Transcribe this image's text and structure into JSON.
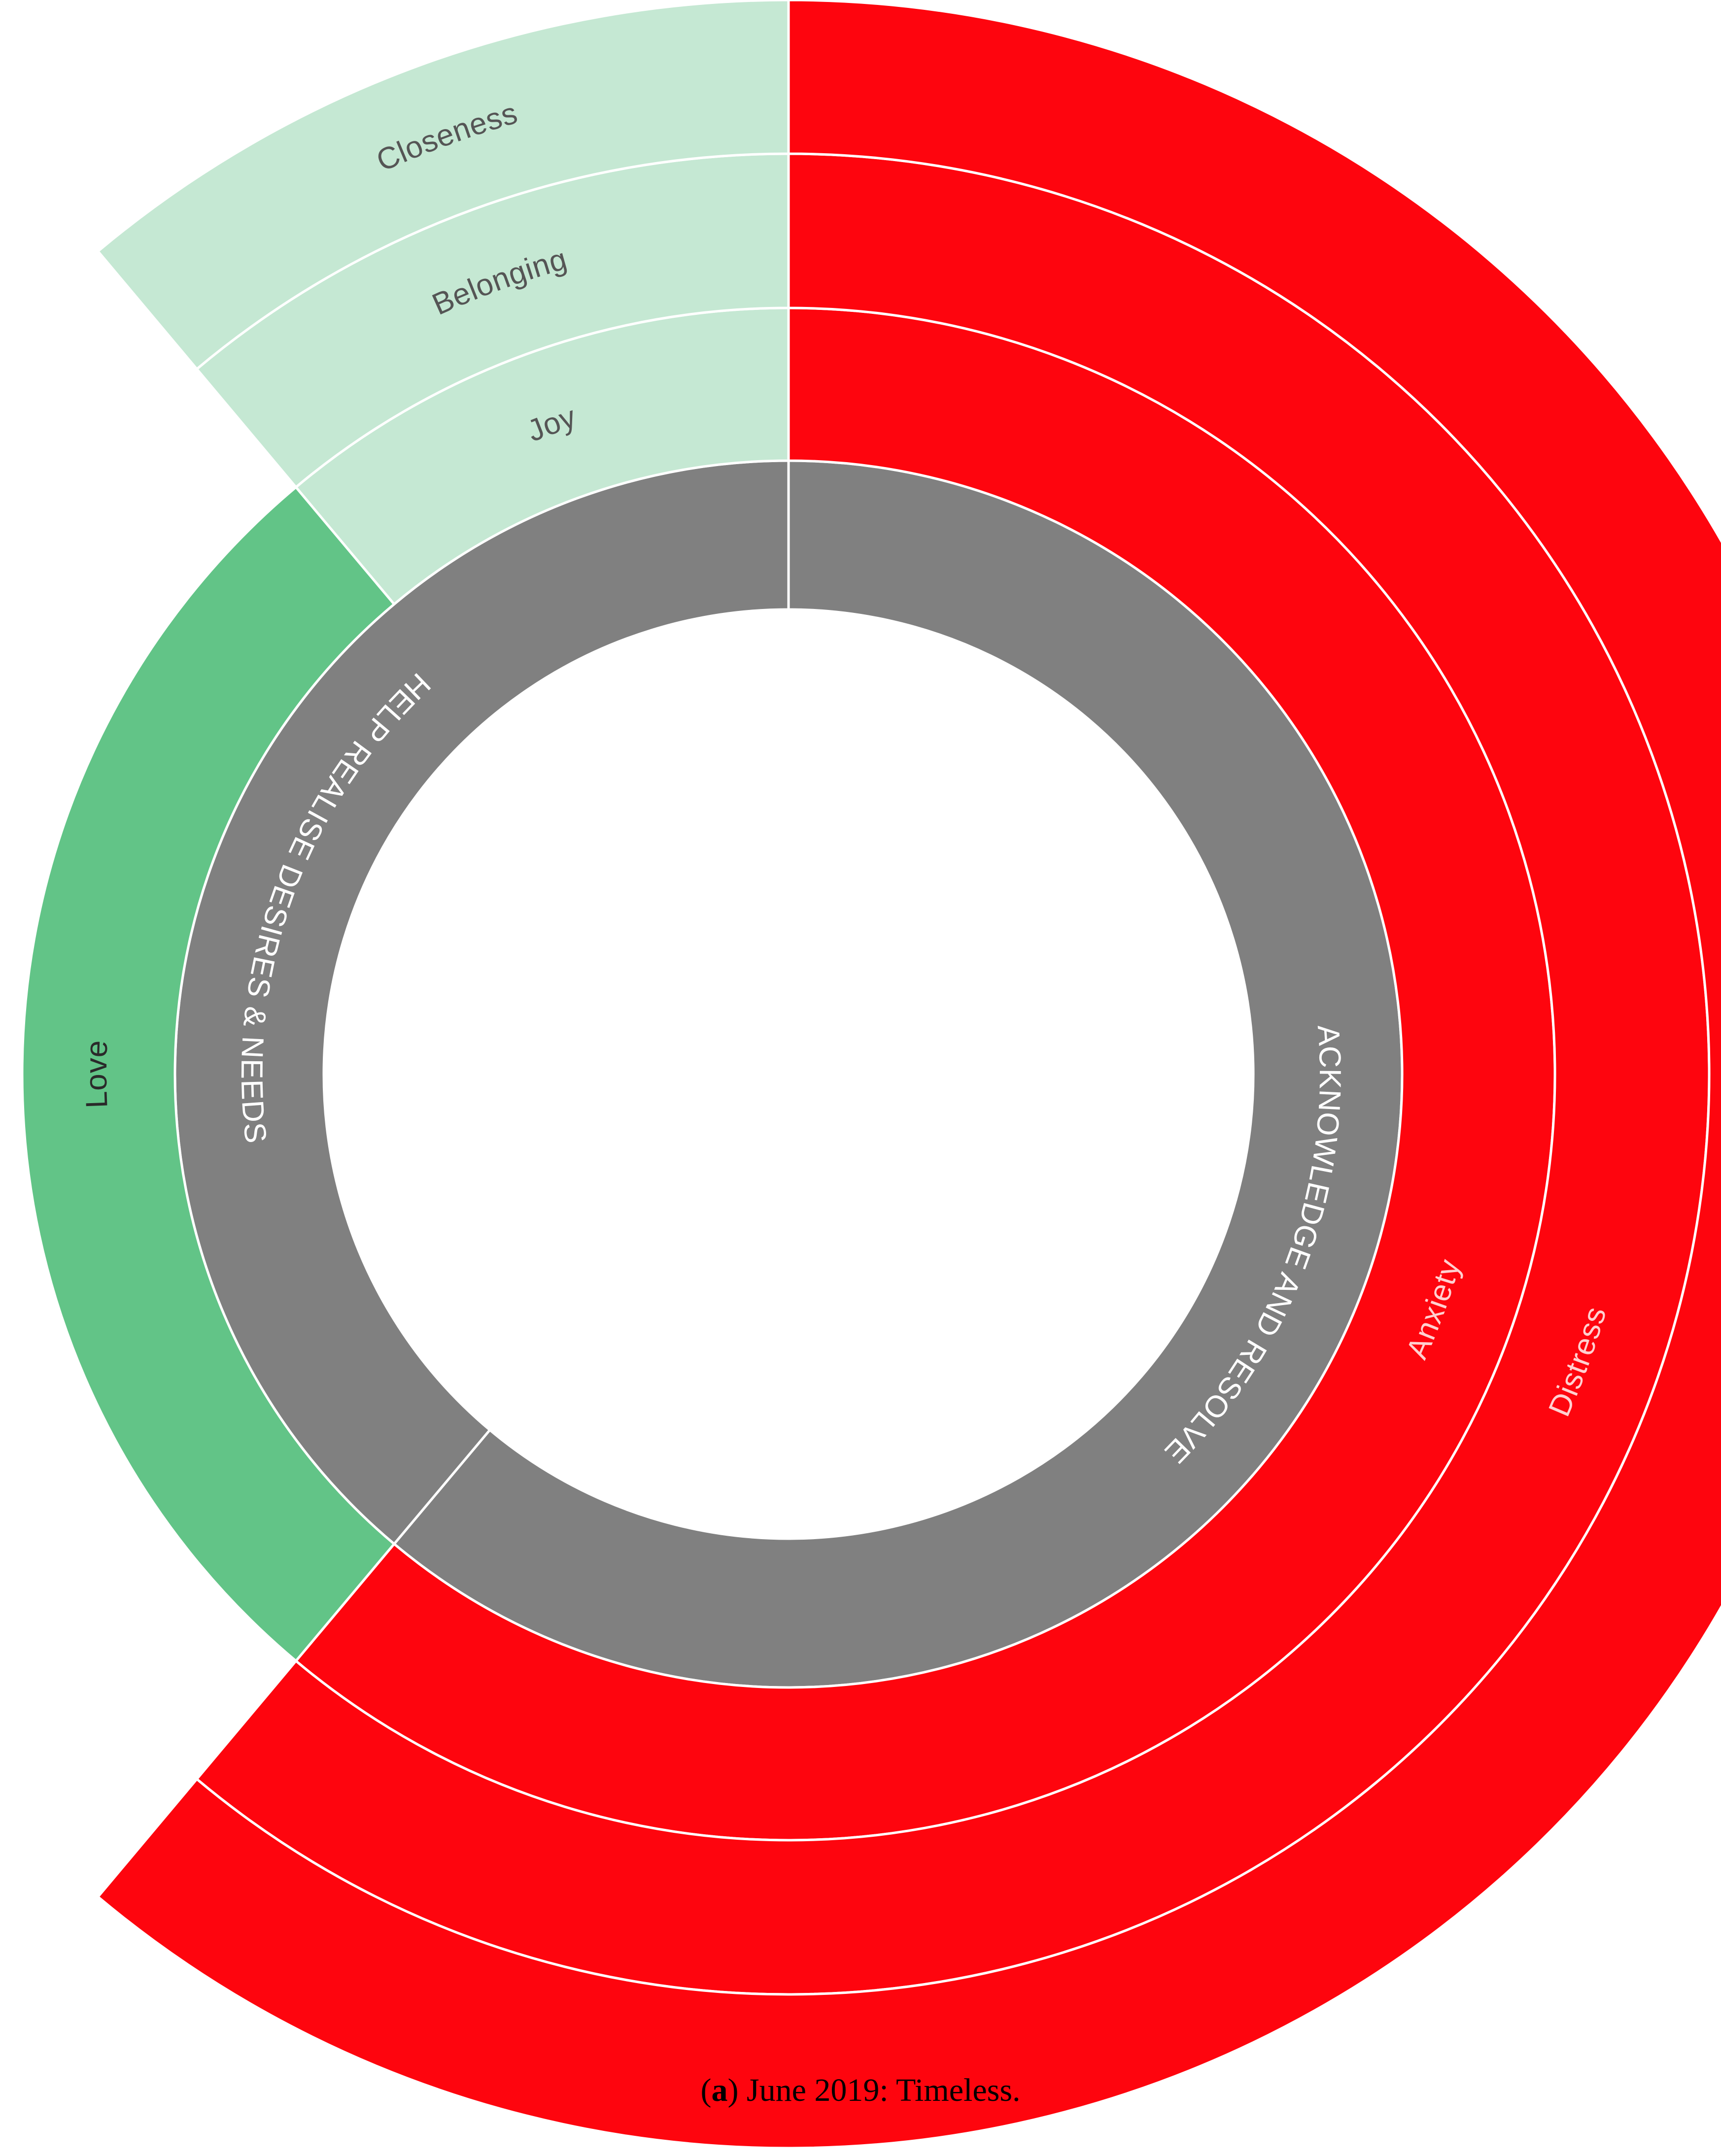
{
  "chart_data": {
    "type": "sunburst",
    "unit": "degrees of arc",
    "rings": [
      {
        "level": 1,
        "segments": [
          {
            "label": "ACKNOWLEDGE AND RESOLVE",
            "start": 0,
            "end": 220,
            "color": "#808080",
            "label_color": "#ffffff"
          },
          {
            "label": "HELP REALISE DESIRES & NEEDS",
            "start": 220,
            "end": 360,
            "color": "#808080",
            "label_color": "#ffffff"
          }
        ]
      },
      {
        "level": 2,
        "segments": [
          {
            "label": "Anxiety",
            "start": 0,
            "end": 220,
            "color": "#fe050e",
            "label_color": "#ffd0d0"
          },
          {
            "label": "Love",
            "start": 220,
            "end": 320,
            "color": "#62c487",
            "label_color": "#2a2a2a"
          },
          {
            "label": "Joy",
            "start": 320,
            "end": 360,
            "color": "#c5e8d3",
            "label_color": "#555555"
          }
        ]
      },
      {
        "level": 3,
        "segments": [
          {
            "label": "Distress",
            "start": 0,
            "end": 220,
            "color": "#fe050e",
            "label_color": "#ffd0d0"
          },
          {
            "label": "Belonging",
            "start": 320,
            "end": 360,
            "color": "#c5e8d3",
            "label_color": "#555555"
          }
        ]
      },
      {
        "level": 4,
        "segments": [
          {
            "label": "",
            "start": 0,
            "end": 220,
            "color": "#fe050e",
            "label_color": "#ffd0d0"
          },
          {
            "label": "Closeness",
            "start": 320,
            "end": 360,
            "color": "#c5e8d3",
            "label_color": "#555555"
          }
        ]
      }
    ]
  },
  "caption": {
    "prefix": "(",
    "letter": "a",
    "suffix": ") June 2019: Timeless."
  }
}
